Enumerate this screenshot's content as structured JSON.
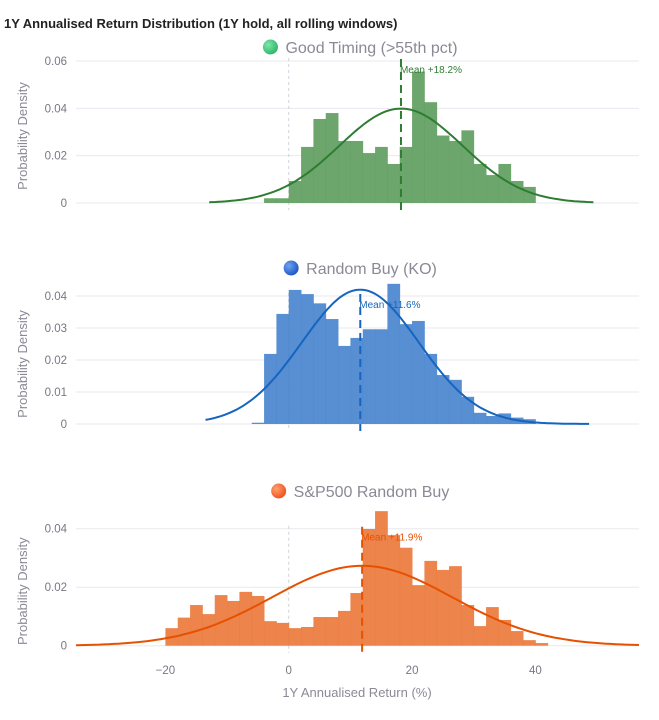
{
  "chart_data": {
    "type": "bar",
    "title": "1Y Annualised Return Distribution (1Y hold, all rolling windows)",
    "xlabel": "1Y Annualised Return (%)",
    "ylabel": "Probability Density",
    "xlim": [
      -34.5,
      56.8
    ],
    "x_ticks": [
      -20,
      0,
      20,
      40
    ],
    "x_tick_labels": [
      "−20",
      "0",
      "20",
      "40"
    ],
    "bin_width": 2,
    "grid": true,
    "zero_reference_line": 0,
    "panels": [
      {
        "name": "Good Timing (>55th pct)",
        "color": "#2e7d32",
        "bar_color": "#5f9e5f",
        "marker_gradient": [
          "#7ee8a8",
          "#2db36b"
        ],
        "ylim": [
          0,
          0.06
        ],
        "y_ticks": [
          0,
          0.02,
          0.04,
          0.06
        ],
        "y_tick_labels": [
          "0",
          "0.02",
          "0.04",
          "0.06"
        ],
        "bin_starts": [
          -4,
          -2,
          0,
          2,
          4,
          6,
          8,
          10,
          12,
          14,
          16,
          18,
          20,
          22,
          24,
          26,
          28,
          30,
          32,
          34,
          36,
          38
        ],
        "densities": [
          0.002,
          0.002,
          0.0093,
          0.0237,
          0.0355,
          0.038,
          0.0262,
          0.0262,
          0.0211,
          0.0237,
          0.0165,
          0.0237,
          0.0555,
          0.0426,
          0.0285,
          0.0262,
          0.0307,
          0.0165,
          0.0118,
          0.0165,
          0.0093,
          0.0068
        ],
        "fit": {
          "type": "normal",
          "mean": 18.2,
          "std": 10.0,
          "x_range": [
            -12.9,
            49.4
          ]
        },
        "mean": 18.2,
        "mean_label": "Mean +18.2%"
      },
      {
        "name": "Random Buy (KO)",
        "color": "#1565c0",
        "bar_color": "#4a86cf",
        "marker_gradient": [
          "#6fa3ef",
          "#1a56c4"
        ],
        "ylim": [
          0,
          0.045
        ],
        "y_ticks": [
          0,
          0.01,
          0.02,
          0.03,
          0.04
        ],
        "y_tick_labels": [
          "0",
          "0.01",
          "0.02",
          "0.03",
          "0.04"
        ],
        "bin_starts": [
          -6,
          -4,
          -2,
          0,
          2,
          4,
          6,
          8,
          10,
          12,
          14,
          16,
          18,
          20,
          22,
          24,
          26,
          28,
          30,
          32,
          34,
          36,
          38
        ],
        "densities": [
          0.0004,
          0.0219,
          0.0344,
          0.0419,
          0.0406,
          0.0377,
          0.0328,
          0.0244,
          0.0269,
          0.0296,
          0.0296,
          0.0438,
          0.0312,
          0.0322,
          0.0219,
          0.0153,
          0.0138,
          0.0085,
          0.0035,
          0.0025,
          0.0033,
          0.002,
          0.0015
        ],
        "fit": {
          "type": "normal",
          "mean": 11.6,
          "std": 9.5,
          "x_range": [
            -13.5,
            48.7
          ]
        },
        "mean": 11.6,
        "mean_label": "Mean +11.6%"
      },
      {
        "name": "S&P500 Random Buy",
        "color": "#e65100",
        "bar_color": "#ec7a3c",
        "marker_gradient": [
          "#ffa070",
          "#f0501a"
        ],
        "ylim": [
          0,
          0.05
        ],
        "y_ticks": [
          0,
          0.02,
          0.04
        ],
        "y_tick_labels": [
          "0",
          "0.02",
          "0.04"
        ],
        "bin_starts": [
          -20,
          -18,
          -16,
          -14,
          -12,
          -10,
          -8,
          -6,
          -4,
          -2,
          0,
          2,
          4,
          6,
          8,
          10,
          12,
          14,
          16,
          18,
          20,
          22,
          24,
          26,
          28,
          30,
          32,
          34,
          36,
          38,
          40
        ],
        "densities": [
          0.006,
          0.0096,
          0.0139,
          0.0108,
          0.0173,
          0.0153,
          0.0184,
          0.017,
          0.0084,
          0.0078,
          0.006,
          0.0064,
          0.0098,
          0.0098,
          0.0119,
          0.018,
          0.0399,
          0.046,
          0.0378,
          0.0335,
          0.0207,
          0.029,
          0.0259,
          0.0272,
          0.0139,
          0.0067,
          0.0132,
          0.0088,
          0.005,
          0.0019,
          0.0009
        ],
        "fit": {
          "type": "normal",
          "mean": 11.9,
          "std": 14.6,
          "x_range": [
            -34.5,
            56.8
          ]
        },
        "mean": 11.9,
        "mean_label": "Mean +11.9%"
      }
    ]
  }
}
